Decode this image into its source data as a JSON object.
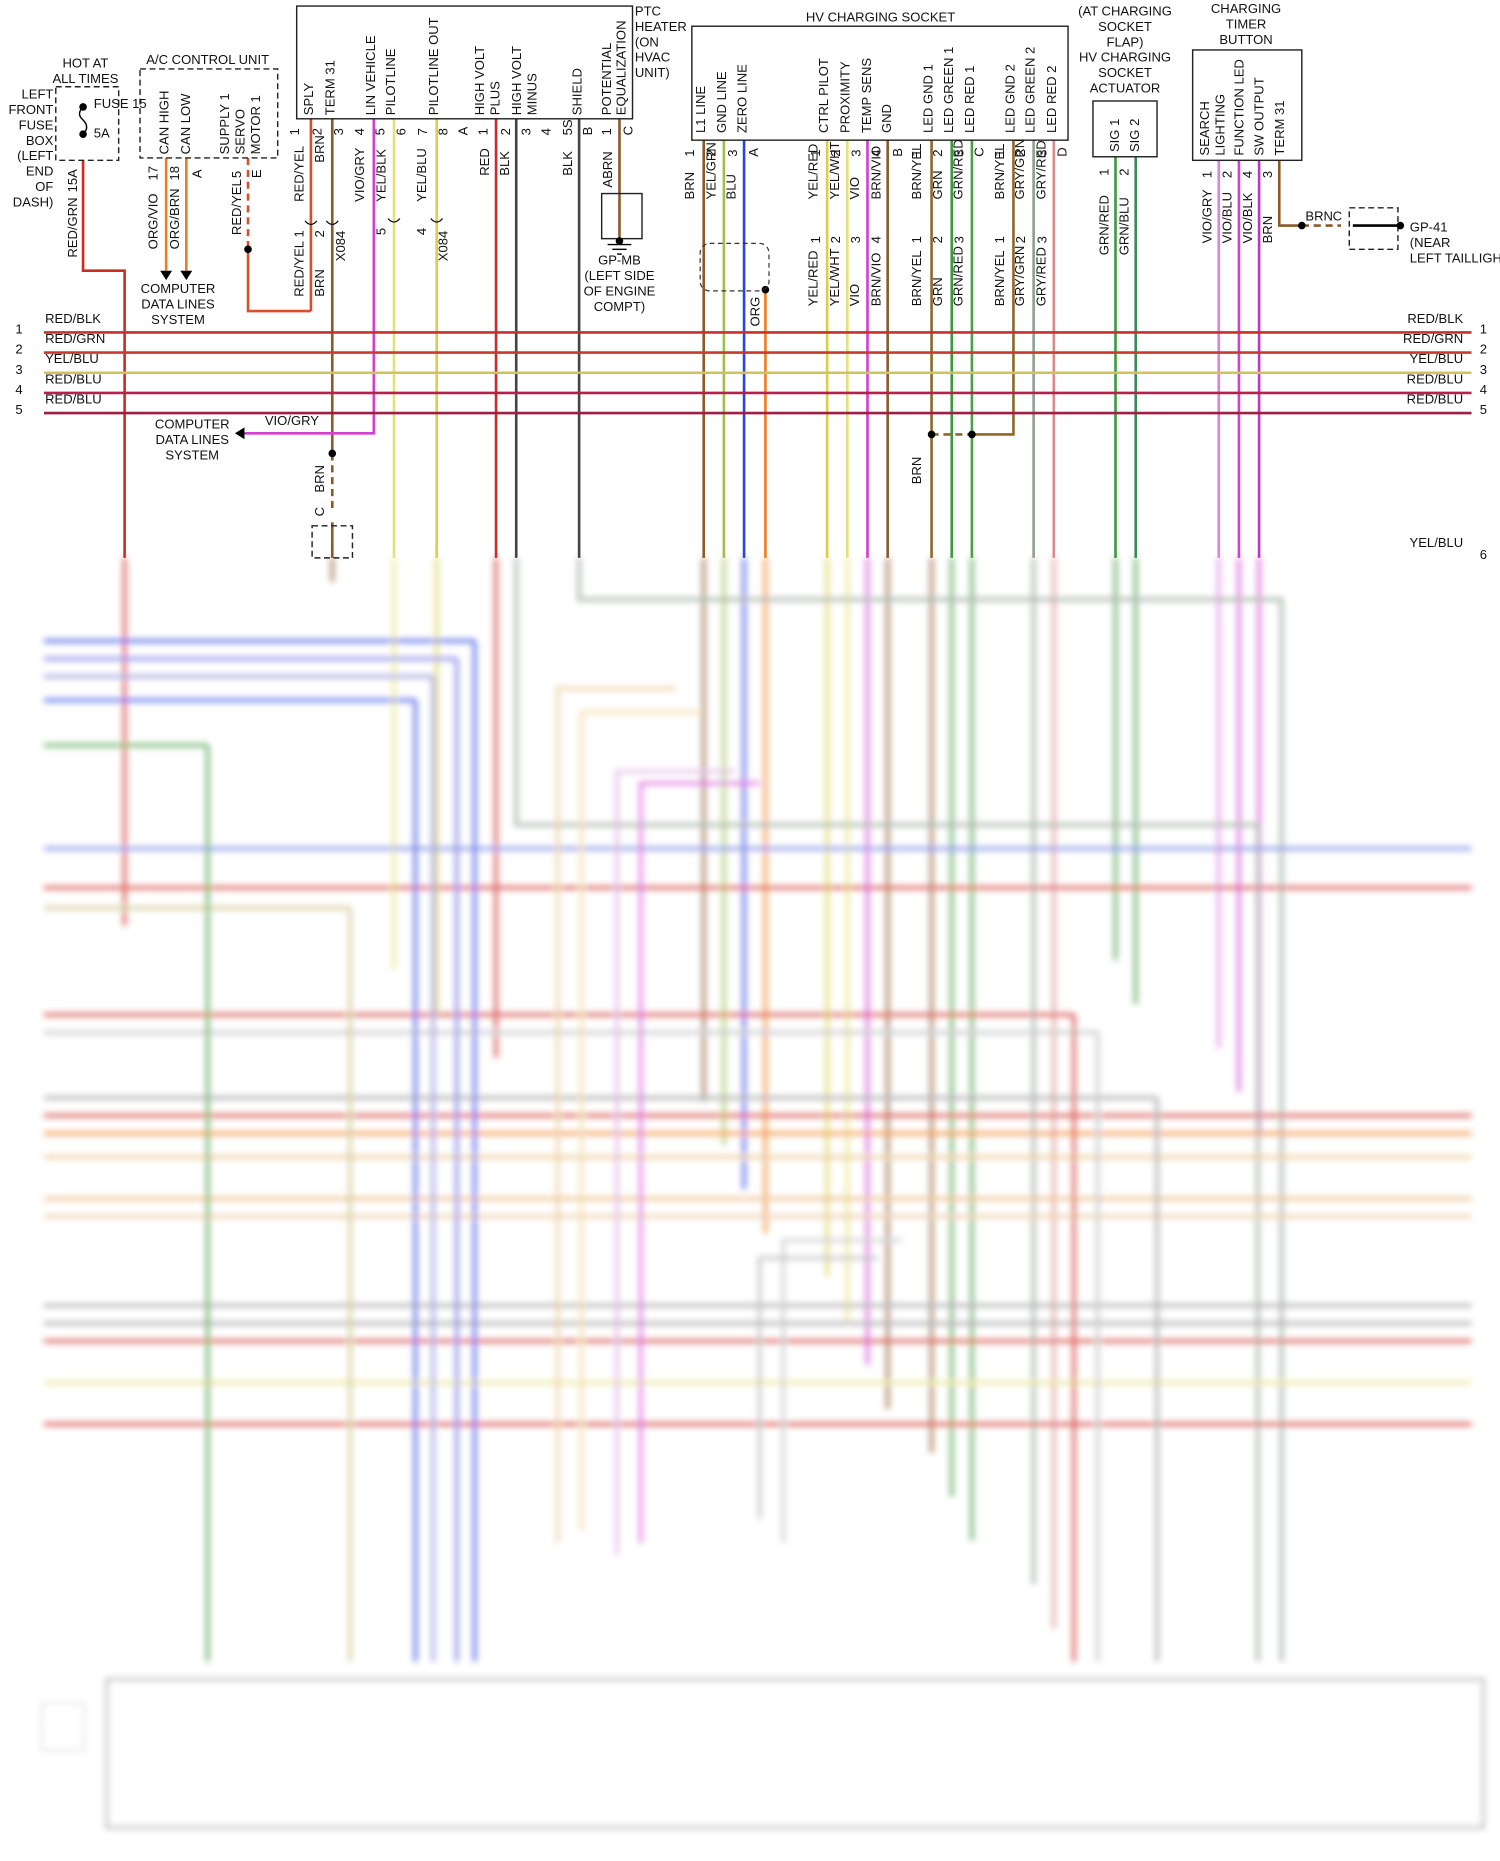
{
  "fuse_box": {
    "condition": [
      "HOT AT",
      "ALL TIMES"
    ],
    "fuse": "FUSE 15",
    "rating": "5A",
    "name": [
      "LEFT",
      "FRONT",
      "FUSE",
      "BOX",
      "(LEFT",
      "END",
      "OF",
      "DASH)"
    ],
    "pin": "15A",
    "wire": "RED/GRN"
  },
  "ac_control_unit": {
    "title": "A/C CONTROL UNIT",
    "pins": [
      {
        "number": "17",
        "name": [
          "CAN HIGH"
        ],
        "wire": "ORG/VIO"
      },
      {
        "number": "18",
        "name": [
          "CAN LOW"
        ],
        "wire": "ORG/BRN"
      },
      {
        "number": "5",
        "name": [
          "SUPPLY 1",
          "SERVO",
          "MOTOR 1"
        ],
        "wire": "RED/YEL"
      }
    ],
    "connectors": [
      "A",
      "E"
    ],
    "destination": [
      "COMPUTER",
      "DATA LINES",
      "SYSTEM"
    ]
  },
  "ptc_heater": {
    "title": [
      "PTC",
      "HEATER",
      "(ON",
      "HVAC",
      "UNIT)"
    ],
    "pins": [
      {
        "number": "1",
        "name": [
          "SPLY"
        ],
        "wire": "RED/YEL"
      },
      {
        "number": "2",
        "name": [
          "TERM 31"
        ],
        "wire": "BRN"
      },
      {
        "number": "3"
      },
      {
        "number": "4",
        "name": [
          "LIN VEHICLE"
        ],
        "wire": "VIO/GRY"
      },
      {
        "number": "5",
        "name": [
          "PILOTLINE"
        ],
        "wire": "YEL/BLK"
      },
      {
        "number": "6"
      },
      {
        "number": "7",
        "name": [
          "PILOTLINE OUT"
        ],
        "wire": "YEL/BLU"
      },
      {
        "number": "8"
      },
      {
        "number": "A"
      },
      {
        "number": "1",
        "name": [
          "HIGH VOLT",
          "PLUS"
        ],
        "wire": "RED"
      },
      {
        "number": "2",
        "name": [
          "HIGH VOLT",
          "MINUS"
        ],
        "wire": "BLK"
      },
      {
        "number": "3"
      },
      {
        "number": "4"
      },
      {
        "number": "5S",
        "name": [
          "SHIELD"
        ],
        "wire": "BLK"
      },
      {
        "number": "B"
      },
      {
        "number": "1",
        "name": [
          "POTENTIAL",
          "EQUALIZATION"
        ],
        "wire": "ABRN"
      },
      {
        "number": "C"
      }
    ]
  },
  "x084_connectors": [
    {
      "pins": [
        "1",
        "2"
      ],
      "wires": [
        "RED/YEL",
        "BRN"
      ],
      "label": "X084"
    },
    {
      "pins": [
        "5",
        "4"
      ],
      "label": "X084"
    }
  ],
  "gp_mb": [
    "GP-MB",
    "(LEFT SIDE",
    "OF ENGINE",
    "COMPT)"
  ],
  "data_lines_2": {
    "wire": "VIO/GRY",
    "destination": [
      "COMPUTER",
      "DATA LINES",
      "SYSTEM"
    ]
  },
  "splice_down": {
    "wire": "BRN",
    "connector": "C"
  },
  "hv_charging_socket": {
    "title": "HV CHARGING SOCKET",
    "groups": [
      {
        "connector": "A",
        "pins": [
          {
            "number": "1",
            "name": [
              "L1 LINE"
            ],
            "wire": "BRN"
          },
          {
            "number": "2",
            "name": [
              "GND LINE"
            ],
            "wire": "YEL/GRN"
          },
          {
            "number": "3",
            "name": [
              "ZERO LINE"
            ],
            "wire": "BLU"
          }
        ],
        "lower": {
          "wires": [
            "ORG"
          ]
        }
      },
      {
        "connector": "B",
        "pins": [
          {
            "number": "1",
            "name": [
              "CTRL PILOT"
            ],
            "wire": "YEL/RED"
          },
          {
            "number": "2",
            "name": [
              "PROXIMITY"
            ],
            "wire": "YEL/WHT"
          },
          {
            "number": "3",
            "name": [
              "TEMP SENS"
            ],
            "wire": "VIO"
          },
          {
            "number": "4",
            "name": [
              "GND"
            ],
            "wire": "BRN/VIO"
          }
        ],
        "lower": {
          "pins": [
            "1",
            "2",
            "3",
            "4"
          ],
          "wires": [
            "YEL/RED",
            "YEL/WHT",
            "VIO",
            "BRN/VIO"
          ]
        }
      },
      {
        "connector": "C",
        "pins": [
          {
            "number": "1",
            "name": [
              "LED GND 1"
            ],
            "wire": "BRN/YEL"
          },
          {
            "number": "2",
            "name": [
              "LED GREEN 1"
            ],
            "wire": "GRN"
          },
          {
            "number": "3",
            "name": [
              "LED RED 1"
            ],
            "wire": "GRN/RED"
          }
        ],
        "lower": {
          "pins": [
            "1",
            "2",
            "3"
          ],
          "wires": [
            "BRN/YEL",
            "GRN",
            "GRN/RED"
          ]
        }
      },
      {
        "connector": "D",
        "pins": [
          {
            "number": "1",
            "name": [
              "LED GND 2"
            ],
            "wire": "BRN/YEL"
          },
          {
            "number": "2",
            "name": [
              "LED GREEN 2"
            ],
            "wire": "GRY/GRN"
          },
          {
            "number": "3",
            "name": [
              "LED RED 2"
            ],
            "wire": "GRY/RED"
          }
        ],
        "lower": {
          "pins": [
            "1",
            "2",
            "3"
          ],
          "wires": [
            "BRN/YEL",
            "GRY/GRN",
            "GRY/RED"
          ]
        }
      }
    ],
    "splice_wire": "BRN"
  },
  "actuator": {
    "title": [
      "(AT CHARGING",
      "SOCKET",
      "FLAP)",
      "HV CHARGING",
      "SOCKET",
      "ACTUATOR"
    ],
    "pins": [
      {
        "number": "1",
        "name": [
          "SIG 1"
        ],
        "wire": "GRN/RED"
      },
      {
        "number": "2",
        "name": [
          "SIG 2"
        ],
        "wire": "GRN/BLU"
      }
    ]
  },
  "timer_button": {
    "title": [
      "CHARGING",
      "TIMER",
      "BUTTON"
    ],
    "pins": [
      {
        "number": "1",
        "name": [
          "SEARCH",
          "LIGHTING"
        ],
        "wire": "VIO/GRY"
      },
      {
        "number": "2",
        "name": [
          "FUNCTION LED"
        ],
        "wire": "VIO/BLU"
      },
      {
        "number": "4",
        "name": [
          "SW OUTPUT"
        ],
        "wire": "VIO/BLK"
      },
      {
        "number": "3",
        "name": [
          "TERM 31"
        ],
        "wire": "BRN"
      }
    ],
    "ground_wire": "BRN",
    "ground_connector": "C",
    "ground": [
      "GP-41",
      "(NEAR",
      "LEFT TAILLIGHT)"
    ]
  },
  "bus": {
    "rows": [
      {
        "number": "1",
        "left": "RED/BLK",
        "right": "RED/BLK"
      },
      {
        "number": "2",
        "left": "RED/GRN",
        "right": "RED/GRN"
      },
      {
        "number": "3",
        "left": "YEL/BLU",
        "right": "YEL/BLU"
      },
      {
        "number": "4",
        "left": "RED/BLU",
        "right": "RED/BLU"
      },
      {
        "number": "5",
        "left": "RED/BLU",
        "right": "RED/BLU"
      }
    ],
    "row6": {
      "number": "6",
      "right": "YEL/BLU"
    }
  }
}
